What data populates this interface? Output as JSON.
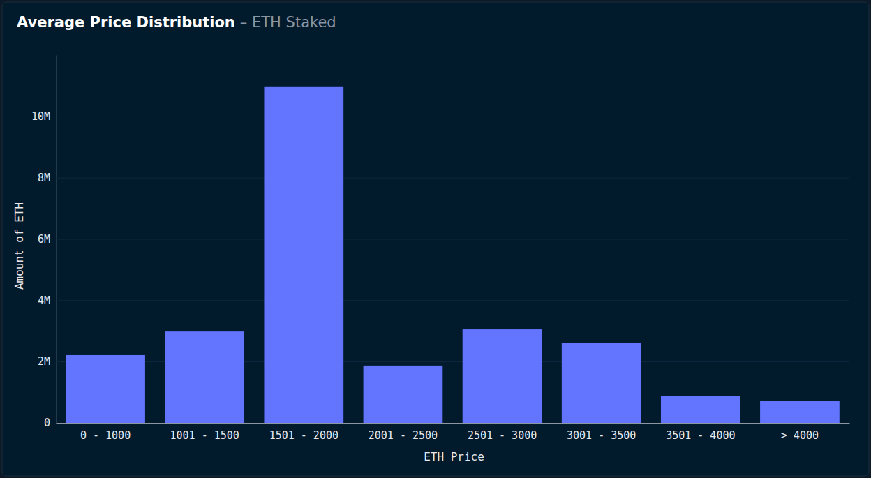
{
  "chart_data": {
    "type": "bar",
    "title": "Average Price Distribution",
    "subtitle": "– ETH Staked",
    "x_label": "ETH Price",
    "y_label": "Amount of ETH",
    "categories": [
      "0 - 1000",
      "1001 - 1500",
      "1501 - 2000",
      "2001 - 2500",
      "2501 - 3000",
      "3001 - 3500",
      "3501 - 4000",
      "> 4000"
    ],
    "values": [
      2210000,
      2980000,
      10980000,
      1870000,
      3050000,
      2600000,
      870000,
      710000
    ],
    "color": "#6375ff",
    "ylim": [
      0,
      12000000
    ],
    "yticks": [
      0,
      {
        "value": 2000000,
        "label": "2M"
      },
      {
        "value": 4000000,
        "label": "4M"
      },
      {
        "value": 6000000,
        "label": "6M"
      },
      {
        "value": 8000000,
        "label": "8M"
      },
      {
        "value": 10000000,
        "label": "10M"
      }
    ],
    "grid": true
  }
}
